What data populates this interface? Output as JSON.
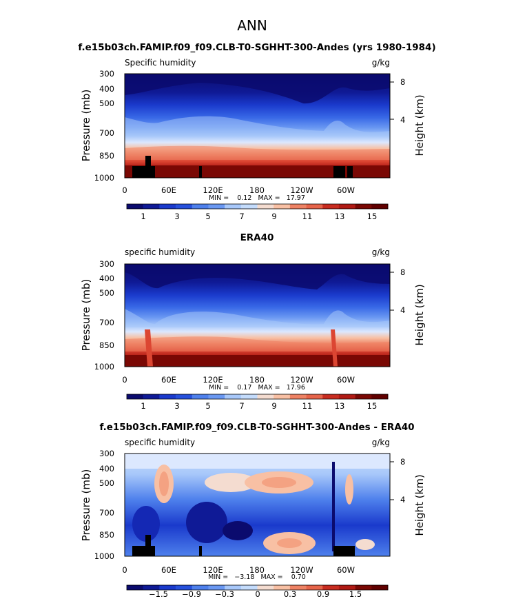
{
  "figure": {
    "title": "ANN"
  },
  "chart_data": [
    {
      "type": "heatmap",
      "title": "f.e15b03ch.FAMIP.f09_f09.CLB-T0-SGHHT-300-Andes (yrs 1980-1984)",
      "left_label": "Specific humidity",
      "units": "g/kg",
      "ylabel": "Pressure (mb)",
      "ylabel_right": "Height (km)",
      "xticks": [
        "0",
        "60E",
        "120E",
        "180",
        "120W",
        "60W"
      ],
      "yticks": [
        "300",
        "400",
        "500",
        "700",
        "850",
        "1000"
      ],
      "yticks_right": [
        "8",
        "4"
      ],
      "xlim": [
        0,
        360
      ],
      "ylim": [
        1000,
        300
      ],
      "stats": "MIN =    0.12   MAX =   17.97",
      "min": 0.12,
      "max": 17.97,
      "colorbar_labels": [
        "1",
        "3",
        "5",
        "7",
        "9",
        "11",
        "13",
        "15"
      ],
      "colorbar_levels": [
        0.5,
        1,
        1.5,
        2,
        2.5,
        3,
        3.5,
        4,
        4.5,
        5,
        5.5,
        6,
        6.5,
        7,
        7.5,
        8,
        9,
        10,
        11,
        12,
        13,
        14,
        15,
        16
      ]
    },
    {
      "type": "heatmap",
      "title": "ERA40",
      "left_label": "specific humidity",
      "units": "g/kg",
      "ylabel": "Pressure (mb)",
      "ylabel_right": "Height (km)",
      "xticks": [
        "0",
        "60E",
        "120E",
        "180",
        "120W",
        "60W"
      ],
      "yticks": [
        "300",
        "400",
        "500",
        "700",
        "850",
        "1000"
      ],
      "yticks_right": [
        "8",
        "4"
      ],
      "xlim": [
        0,
        360
      ],
      "ylim": [
        1000,
        300
      ],
      "stats": "MIN =    0.17   MAX =   17.96",
      "min": 0.17,
      "max": 17.96,
      "colorbar_labels": [
        "1",
        "3",
        "5",
        "7",
        "9",
        "11",
        "13",
        "15"
      ],
      "colorbar_levels": [
        0.5,
        1,
        1.5,
        2,
        2.5,
        3,
        3.5,
        4,
        4.5,
        5,
        5.5,
        6,
        6.5,
        7,
        7.5,
        8,
        9,
        10,
        11,
        12,
        13,
        14,
        15,
        16
      ]
    },
    {
      "type": "heatmap",
      "title": "f.e15b03ch.FAMIP.f09_f09.CLB-T0-SGHHT-300-Andes - ERA40",
      "left_label": "specific humidity",
      "units": "g/kg",
      "ylabel": "Pressure (mb)",
      "ylabel_right": "Height (km)",
      "xticks": [
        "0",
        "60E",
        "120E",
        "180",
        "120W",
        "60W"
      ],
      "yticks": [
        "300",
        "400",
        "500",
        "700",
        "850",
        "1000"
      ],
      "yticks_right": [
        "8",
        "4"
      ],
      "xlim": [
        0,
        360
      ],
      "ylim": [
        1000,
        300
      ],
      "stats": "MIN =   −3.18   MAX =    0.70",
      "min": -3.18,
      "max": 0.7,
      "colorbar_labels": [
        "−1.5",
        "−0.9",
        "−0.3",
        "0",
        "0.3",
        "0.9",
        "1.5"
      ],
      "colorbar_levels": [
        -2.0,
        -1.8,
        -1.5,
        -1.2,
        -0.9,
        -0.6,
        -0.3,
        -0.1,
        0,
        0.1,
        0.3,
        0.6,
        0.9,
        1.2,
        1.5,
        1.8
      ]
    }
  ],
  "colors": {
    "scale": [
      "#0b0b6e",
      "#0f1a96",
      "#1428b4",
      "#1a3acc",
      "#2650dc",
      "#3868e6",
      "#4e80ec",
      "#6a98f2",
      "#88b0f6",
      "#a8c8fa",
      "#c4dcfc",
      "#dce8fe",
      "#f4dcd0",
      "#f8c0a4",
      "#f4a282",
      "#ee8264",
      "#e6644a",
      "#dc4632",
      "#c82c20",
      "#b01a14",
      "#961008",
      "#7a0804",
      "#600000"
    ]
  }
}
